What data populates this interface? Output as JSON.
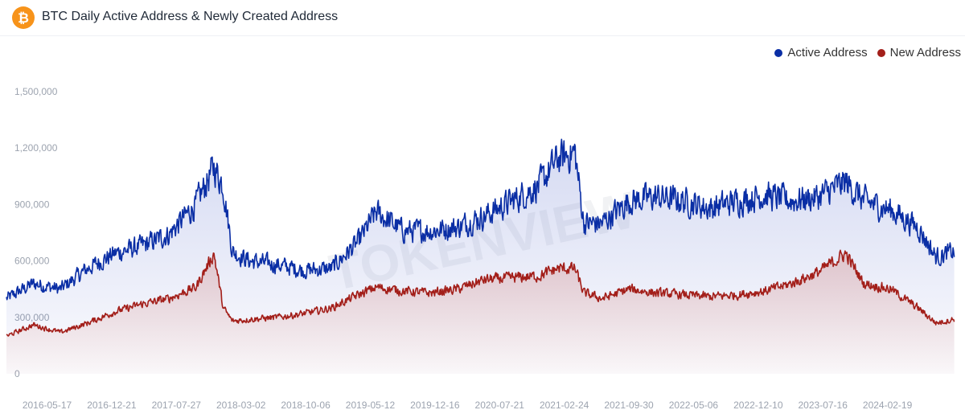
{
  "header": {
    "title": "BTC Daily Active Address & Newly Created Address"
  },
  "icons": {
    "logo": "bitcoin-icon"
  },
  "watermark": "TOKENVIEW",
  "colors": {
    "active": "#0a2ea5",
    "new": "#a31f1a",
    "logo": "#f7931a",
    "grid": "#eef0f4"
  },
  "legend": [
    {
      "label": "Active Address",
      "color": "#0a2ea5"
    },
    {
      "label": "New Address",
      "color": "#a31f1a"
    }
  ],
  "chart_data": {
    "type": "area",
    "title": "BTC Daily Active Address & Newly Created Address",
    "ylim": [
      0,
      1500000
    ],
    "y_ticks": [
      "0",
      "300,000",
      "600,000",
      "900,000",
      "1,200,000",
      "1,500,000"
    ],
    "x_tick_labels": [
      "2016-05-17",
      "2016-12-21",
      "2017-07-27",
      "2018-03-02",
      "2018-10-06",
      "2019-05-12",
      "2019-12-16",
      "2020-07-21",
      "2021-02-24",
      "2021-09-30",
      "2022-05-06",
      "2022-12-10",
      "2023-07-16",
      "2024-02-19"
    ],
    "grid": false,
    "legend_position": "top-right",
    "x": [
      "2016-01",
      "2016-04",
      "2016-07",
      "2016-10",
      "2017-01",
      "2017-04",
      "2017-07",
      "2017-10",
      "2017-12",
      "2018-01",
      "2018-02",
      "2018-04",
      "2018-07",
      "2018-10",
      "2019-01",
      "2019-04",
      "2019-06",
      "2019-09",
      "2019-12",
      "2020-03",
      "2020-06",
      "2020-09",
      "2020-12",
      "2021-02",
      "2021-04",
      "2021-05",
      "2021-07",
      "2021-10",
      "2022-01",
      "2022-04",
      "2022-07",
      "2022-10",
      "2023-01",
      "2023-04",
      "2023-07",
      "2023-10",
      "2023-12",
      "2024-03",
      "2024-06",
      "2024-08",
      "2024-10"
    ],
    "series": [
      {
        "name": "Active Address",
        "values": [
          400000,
          480000,
          450000,
          560000,
          640000,
          680000,
          740000,
          900000,
          1100000,
          1000000,
          650000,
          600000,
          580000,
          550000,
          560000,
          700000,
          860000,
          760000,
          760000,
          780000,
          840000,
          920000,
          1000000,
          1140000,
          1180000,
          800000,
          800000,
          920000,
          940000,
          920000,
          880000,
          920000,
          950000,
          920000,
          940000,
          1020000,
          920000,
          870000,
          780000,
          620000,
          650000
        ]
      },
      {
        "name": "New Address",
        "values": [
          200000,
          260000,
          220000,
          270000,
          330000,
          370000,
          400000,
          460000,
          640000,
          350000,
          280000,
          290000,
          300000,
          320000,
          350000,
          420000,
          460000,
          440000,
          430000,
          450000,
          500000,
          510000,
          520000,
          560000,
          560000,
          430000,
          400000,
          450000,
          430000,
          420000,
          410000,
          420000,
          440000,
          480000,
          540000,
          640000,
          480000,
          450000,
          350000,
          270000,
          290000
        ]
      }
    ]
  }
}
